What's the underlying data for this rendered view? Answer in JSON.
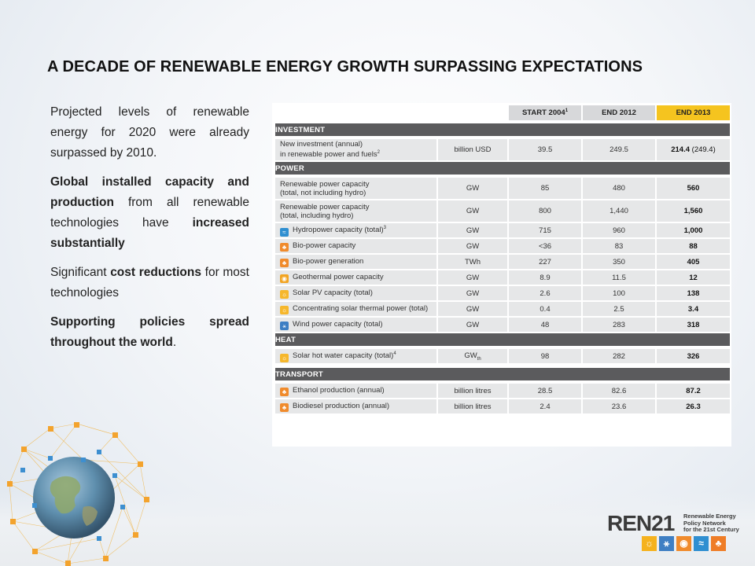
{
  "title": "A DECADE OF RENEWABLE ENERGY GROWTH SURPASSING EXPECTATIONS",
  "left": {
    "p1": "Projected levels of renewable energy for 2020 were already surpassed by 2010.",
    "p2_bold1": "Global installed capacity and production",
    "p2_mid": " from all renewable technologies have ",
    "p2_bold2": "increased substantially",
    "p3_pre": "Significant ",
    "p3_bold": "cost reductions",
    "p3_post": " for most technologies",
    "p4_bold": "Supporting policies spread throughout the world",
    "p4_post": "."
  },
  "table": {
    "headers": {
      "start": "START 2004",
      "start_sup": "1",
      "end2012": "END 2012",
      "end2013": "END 2013"
    },
    "sections": {
      "investment": "INVESTMENT",
      "power": "POWER",
      "heat": "HEAT",
      "transport": "TRANSPORT"
    },
    "rows": {
      "inv": {
        "label1": "New investment (annual)",
        "label2": "in renewable power and fuels",
        "sup": "2",
        "unit": "billion USD",
        "v2004": "39.5",
        "v2012": "249.5",
        "v2013": "214.4",
        "v2013_extra": " (249.4)"
      },
      "rpc": {
        "label1": "Renewable power capacity",
        "label2": "(total, not including hydro)",
        "unit": "GW",
        "v2004": "85",
        "v2012": "480",
        "v2013": "560"
      },
      "rpc_hydro": {
        "label1": "Renewable power capacity",
        "label2": "(total, including hydro)",
        "unit": "GW",
        "v2004": "800",
        "v2012": "1,440",
        "v2013": "1,560"
      },
      "hydro": {
        "label": "Hydropower capacity (total)",
        "sup": "3",
        "unit": "GW",
        "v2004": "715",
        "v2012": "960",
        "v2013": "1,000"
      },
      "biocap": {
        "label": "Bio-power capacity",
        "unit": "GW",
        "v2004": "<36",
        "v2012": "83",
        "v2013": "88"
      },
      "biogen": {
        "label": "Bio-power generation",
        "unit": "TWh",
        "v2004": "227",
        "v2012": "350",
        "v2013": "405"
      },
      "geo": {
        "label": "Geothermal power capacity",
        "unit": "GW",
        "v2004": "8.9",
        "v2012": "11.5",
        "v2013": "12"
      },
      "pv": {
        "label": "Solar PV capacity (total)",
        "unit": "GW",
        "v2004": "2.6",
        "v2012": "100",
        "v2013": "138"
      },
      "csp": {
        "label": "Concentrating solar thermal power (total)",
        "unit": "GW",
        "v2004": "0.4",
        "v2012": "2.5",
        "v2013": "3.4"
      },
      "wind": {
        "label": "Wind power capacity (total)",
        "unit": "GW",
        "v2004": "48",
        "v2012": "283",
        "v2013": "318"
      },
      "shw": {
        "label": "Solar hot water capacity (total)",
        "sup": "4",
        "unit": "GW",
        "unit_sub": "th",
        "v2004": "98",
        "v2012": "282",
        "v2013": "326"
      },
      "eth": {
        "label": "Ethanol production (annual)",
        "unit": "billion litres",
        "v2004": "28.5",
        "v2012": "82.6",
        "v2013": "87.2"
      },
      "biod": {
        "label": "Biodiesel production (annual)",
        "unit": "billion litres",
        "v2004": "2.4",
        "v2012": "23.6",
        "v2013": "26.3"
      }
    }
  },
  "logo": {
    "word": "REN",
    "num": "21",
    "tag1": "Renewable Energy",
    "tag2": "Policy Network",
    "tag3": "for the 21st Century"
  }
}
